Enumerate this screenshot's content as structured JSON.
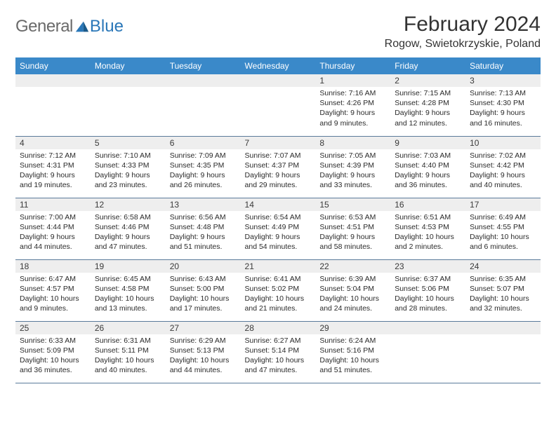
{
  "logo": {
    "text1": "General",
    "text2": "Blue"
  },
  "title": "February 2024",
  "location": "Rogow, Swietokrzyskie, Poland",
  "colors": {
    "header_bg": "#3a89c9",
    "header_text": "#ffffff",
    "daynum_bg": "#eeeeee",
    "border": "#5a7a9a",
    "logo_gray": "#6a6a6a",
    "logo_blue": "#2a77b8"
  },
  "weekdays": [
    "Sunday",
    "Monday",
    "Tuesday",
    "Wednesday",
    "Thursday",
    "Friday",
    "Saturday"
  ],
  "weeks": [
    [
      null,
      null,
      null,
      null,
      {
        "n": "1",
        "sr": "Sunrise: 7:16 AM",
        "ss": "Sunset: 4:26 PM",
        "dl": "Daylight: 9 hours and 9 minutes."
      },
      {
        "n": "2",
        "sr": "Sunrise: 7:15 AM",
        "ss": "Sunset: 4:28 PM",
        "dl": "Daylight: 9 hours and 12 minutes."
      },
      {
        "n": "3",
        "sr": "Sunrise: 7:13 AM",
        "ss": "Sunset: 4:30 PM",
        "dl": "Daylight: 9 hours and 16 minutes."
      }
    ],
    [
      {
        "n": "4",
        "sr": "Sunrise: 7:12 AM",
        "ss": "Sunset: 4:31 PM",
        "dl": "Daylight: 9 hours and 19 minutes."
      },
      {
        "n": "5",
        "sr": "Sunrise: 7:10 AM",
        "ss": "Sunset: 4:33 PM",
        "dl": "Daylight: 9 hours and 23 minutes."
      },
      {
        "n": "6",
        "sr": "Sunrise: 7:09 AM",
        "ss": "Sunset: 4:35 PM",
        "dl": "Daylight: 9 hours and 26 minutes."
      },
      {
        "n": "7",
        "sr": "Sunrise: 7:07 AM",
        "ss": "Sunset: 4:37 PM",
        "dl": "Daylight: 9 hours and 29 minutes."
      },
      {
        "n": "8",
        "sr": "Sunrise: 7:05 AM",
        "ss": "Sunset: 4:39 PM",
        "dl": "Daylight: 9 hours and 33 minutes."
      },
      {
        "n": "9",
        "sr": "Sunrise: 7:03 AM",
        "ss": "Sunset: 4:40 PM",
        "dl": "Daylight: 9 hours and 36 minutes."
      },
      {
        "n": "10",
        "sr": "Sunrise: 7:02 AM",
        "ss": "Sunset: 4:42 PM",
        "dl": "Daylight: 9 hours and 40 minutes."
      }
    ],
    [
      {
        "n": "11",
        "sr": "Sunrise: 7:00 AM",
        "ss": "Sunset: 4:44 PM",
        "dl": "Daylight: 9 hours and 44 minutes."
      },
      {
        "n": "12",
        "sr": "Sunrise: 6:58 AM",
        "ss": "Sunset: 4:46 PM",
        "dl": "Daylight: 9 hours and 47 minutes."
      },
      {
        "n": "13",
        "sr": "Sunrise: 6:56 AM",
        "ss": "Sunset: 4:48 PM",
        "dl": "Daylight: 9 hours and 51 minutes."
      },
      {
        "n": "14",
        "sr": "Sunrise: 6:54 AM",
        "ss": "Sunset: 4:49 PM",
        "dl": "Daylight: 9 hours and 54 minutes."
      },
      {
        "n": "15",
        "sr": "Sunrise: 6:53 AM",
        "ss": "Sunset: 4:51 PM",
        "dl": "Daylight: 9 hours and 58 minutes."
      },
      {
        "n": "16",
        "sr": "Sunrise: 6:51 AM",
        "ss": "Sunset: 4:53 PM",
        "dl": "Daylight: 10 hours and 2 minutes."
      },
      {
        "n": "17",
        "sr": "Sunrise: 6:49 AM",
        "ss": "Sunset: 4:55 PM",
        "dl": "Daylight: 10 hours and 6 minutes."
      }
    ],
    [
      {
        "n": "18",
        "sr": "Sunrise: 6:47 AM",
        "ss": "Sunset: 4:57 PM",
        "dl": "Daylight: 10 hours and 9 minutes."
      },
      {
        "n": "19",
        "sr": "Sunrise: 6:45 AM",
        "ss": "Sunset: 4:58 PM",
        "dl": "Daylight: 10 hours and 13 minutes."
      },
      {
        "n": "20",
        "sr": "Sunrise: 6:43 AM",
        "ss": "Sunset: 5:00 PM",
        "dl": "Daylight: 10 hours and 17 minutes."
      },
      {
        "n": "21",
        "sr": "Sunrise: 6:41 AM",
        "ss": "Sunset: 5:02 PM",
        "dl": "Daylight: 10 hours and 21 minutes."
      },
      {
        "n": "22",
        "sr": "Sunrise: 6:39 AM",
        "ss": "Sunset: 5:04 PM",
        "dl": "Daylight: 10 hours and 24 minutes."
      },
      {
        "n": "23",
        "sr": "Sunrise: 6:37 AM",
        "ss": "Sunset: 5:06 PM",
        "dl": "Daylight: 10 hours and 28 minutes."
      },
      {
        "n": "24",
        "sr": "Sunrise: 6:35 AM",
        "ss": "Sunset: 5:07 PM",
        "dl": "Daylight: 10 hours and 32 minutes."
      }
    ],
    [
      {
        "n": "25",
        "sr": "Sunrise: 6:33 AM",
        "ss": "Sunset: 5:09 PM",
        "dl": "Daylight: 10 hours and 36 minutes."
      },
      {
        "n": "26",
        "sr": "Sunrise: 6:31 AM",
        "ss": "Sunset: 5:11 PM",
        "dl": "Daylight: 10 hours and 40 minutes."
      },
      {
        "n": "27",
        "sr": "Sunrise: 6:29 AM",
        "ss": "Sunset: 5:13 PM",
        "dl": "Daylight: 10 hours and 44 minutes."
      },
      {
        "n": "28",
        "sr": "Sunrise: 6:27 AM",
        "ss": "Sunset: 5:14 PM",
        "dl": "Daylight: 10 hours and 47 minutes."
      },
      {
        "n": "29",
        "sr": "Sunrise: 6:24 AM",
        "ss": "Sunset: 5:16 PM",
        "dl": "Daylight: 10 hours and 51 minutes."
      },
      null,
      null
    ]
  ]
}
